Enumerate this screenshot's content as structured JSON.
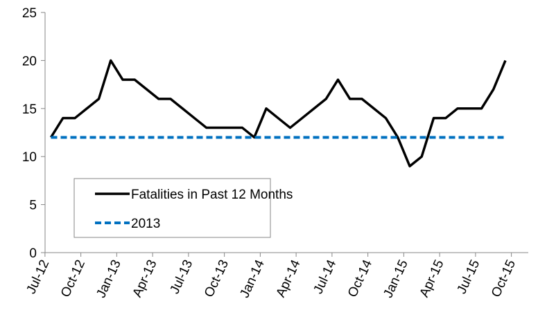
{
  "chart_data": {
    "type": "line",
    "categories": [
      "Jul-12",
      null,
      null,
      "Oct-12",
      null,
      null,
      "Jan-13",
      null,
      null,
      "Apr-13",
      null,
      null,
      "Jul-13",
      null,
      null,
      "Oct-13",
      null,
      null,
      "Jan-14",
      null,
      null,
      "Apr-14",
      null,
      null,
      "Jul-14",
      null,
      null,
      "Oct-14",
      null,
      null,
      "Jan-15",
      null,
      null,
      "Apr-15",
      null,
      null,
      "Jul-15",
      null,
      null,
      "Oct-15"
    ],
    "series": [
      {
        "name": "Fatalities in Past 12 Months",
        "color": "#000000",
        "dashed": false,
        "values": [
          12,
          14,
          14,
          15,
          16,
          20,
          18,
          18,
          17,
          16,
          16,
          15,
          14,
          13,
          13,
          13,
          13,
          12,
          15,
          14,
          13,
          14,
          15,
          16,
          18,
          16,
          16,
          15,
          14,
          12,
          9,
          10,
          14,
          14,
          15,
          15,
          15,
          17,
          20,
          null
        ]
      },
      {
        "name": "2013",
        "color": "#0070c0",
        "dashed": true,
        "values": [
          12,
          12,
          12,
          12,
          12,
          12,
          12,
          12,
          12,
          12,
          12,
          12,
          12,
          12,
          12,
          12,
          12,
          12,
          12,
          12,
          12,
          12,
          12,
          12,
          12,
          12,
          12,
          12,
          12,
          12,
          12,
          12,
          12,
          12,
          12,
          12,
          12,
          12,
          12,
          null
        ]
      }
    ],
    "ylim": [
      0,
      25
    ],
    "yticks": [
      0,
      5,
      10,
      15,
      20,
      25
    ],
    "legend": "lower left"
  }
}
